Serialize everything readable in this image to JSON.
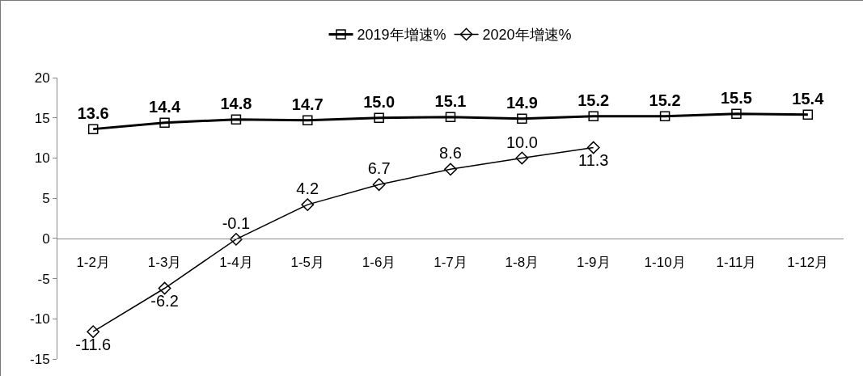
{
  "chart_data": {
    "type": "line",
    "categories": [
      "1-2月",
      "1-3月",
      "1-4月",
      "1-5月",
      "1-6月",
      "1-7月",
      "1-8月",
      "1-9月",
      "1-10月",
      "1-11月",
      "1-12月"
    ],
    "series": [
      {
        "name": "2019年增速%",
        "color": "#000000",
        "marker": "square",
        "values": [
          13.6,
          14.4,
          14.8,
          14.7,
          15.0,
          15.1,
          14.9,
          15.2,
          15.2,
          15.5,
          15.4
        ],
        "value_labels": [
          "13.6",
          "14.4",
          "14.8",
          "14.7",
          "15.0",
          "15.1",
          "14.9",
          "15.2",
          "15.2",
          "15.5",
          "15.4"
        ]
      },
      {
        "name": "2020年增速%",
        "color": "#000000",
        "marker": "diamond",
        "values": [
          -11.6,
          -6.2,
          -0.1,
          4.2,
          6.7,
          8.6,
          10.0,
          11.3,
          null,
          null,
          null
        ],
        "value_labels": [
          "-11.6",
          "-6.2",
          "-0.1",
          "4.2",
          "6.7",
          "8.6",
          "10.0",
          "11.3",
          null,
          null,
          null
        ]
      }
    ],
    "ylim": [
      -15,
      20
    ],
    "yticks": [
      -15,
      -10,
      -5,
      0,
      5,
      10,
      15,
      20
    ],
    "grid": false,
    "legend": "top",
    "line_style": "solid"
  }
}
